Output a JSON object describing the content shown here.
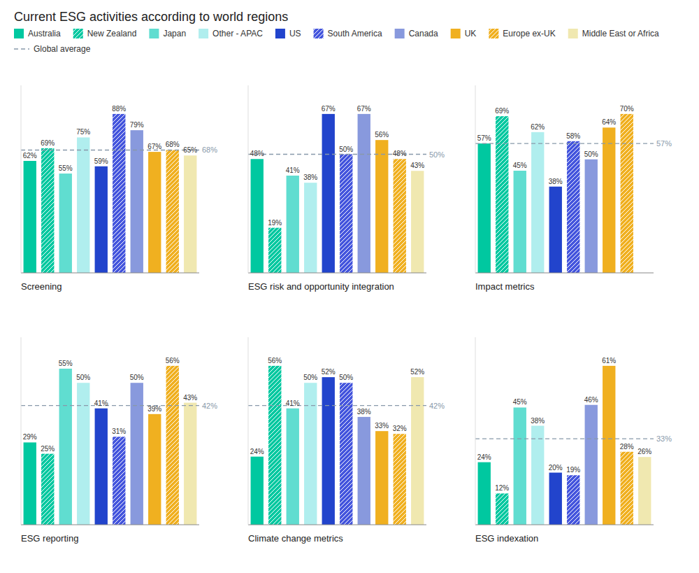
{
  "title": "Current ESG activities according to world regions",
  "chart_data": [
    {
      "type": "bar",
      "title": "Screening",
      "categories": [
        "Australia",
        "New Zealand",
        "Japan",
        "Other - APAC",
        "US",
        "South America",
        "Canada",
        "UK",
        "Europe ex-UK",
        "Middle East or Africa"
      ],
      "colors": [
        "#00c8a0",
        "#00c8a0",
        "#60ddd0",
        "#b0eeee",
        "#2244cc",
        "#4455dd",
        "#8899dd",
        "#f0b020",
        "#f0b020",
        "#f0e8b0"
      ],
      "values": [
        62,
        69,
        55,
        75,
        59,
        88,
        79,
        67,
        68,
        65
      ],
      "value_labels": [
        "62%",
        "69%",
        "55%",
        "75%",
        "59%",
        "88%",
        "79%",
        "67%",
        "68%",
        "65%"
      ],
      "data_labels": true,
      "global_average": {
        "name": "Global average",
        "value": 68,
        "label": "68%",
        "color": "#8899aa",
        "line_style": "dashed"
      },
      "ylim": [
        0,
        103.84
      ],
      "tick_labels": false,
      "grid": false,
      "legend": "top-left"
    },
    {
      "type": "bar",
      "title": "ESG risk and opportunity integration",
      "categories": [
        "Australia",
        "New Zealand",
        "Japan",
        "Other - APAC",
        "US",
        "South America",
        "Canada",
        "UK",
        "Europe ex-UK",
        "Middle East or Africa"
      ],
      "colors": [
        "#00c8a0",
        "#00c8a0",
        "#60ddd0",
        "#b0eeee",
        "#2244cc",
        "#4455dd",
        "#8899dd",
        "#f0b020",
        "#f0b020",
        "#f0e8b0"
      ],
      "values": [
        48,
        19,
        41,
        38,
        67,
        50,
        67,
        56,
        48,
        43
      ],
      "value_labels": [
        "48%",
        "19%",
        "41%",
        "38%",
        "67%",
        "50%",
        "67%",
        "56%",
        "48%",
        "43%"
      ],
      "data_labels": true,
      "global_average": {
        "name": "Global average",
        "value": 50,
        "label": "50%",
        "color": "#8899aa",
        "line_style": "dashed"
      },
      "ylim": [
        0,
        79.06
      ],
      "tick_labels": false,
      "grid": false
    },
    {
      "type": "bar",
      "title": "Impact metrics",
      "categories": [
        "Australia",
        "New Zealand",
        "Japan",
        "Other - APAC",
        "US",
        "South America",
        "Canada",
        "UK",
        "Europe ex-UK",
        "Middle East or Africa"
      ],
      "colors": [
        "#00c8a0",
        "#00c8a0",
        "#60ddd0",
        "#b0eeee",
        "#2244cc",
        "#4455dd",
        "#8899dd",
        "#f0b020",
        "#f0b020",
        "#f0e8b0"
      ],
      "values": [
        57,
        69,
        45,
        62,
        38,
        58,
        50,
        64,
        70,
        null
      ],
      "value_labels": [
        "57%",
        "69%",
        "45%",
        "62%",
        "38%",
        "58%",
        "50%",
        "64%",
        "70%",
        null
      ],
      "data_labels": true,
      "global_average": {
        "name": "Global average",
        "value": 57,
        "label": "57%",
        "color": "#8899aa",
        "line_style": "dashed"
      },
      "ylim": [
        0,
        82.6
      ],
      "tick_labels": false,
      "grid": false
    },
    {
      "type": "bar",
      "title": "ESG reporting",
      "categories": [
        "Australia",
        "New Zealand",
        "Japan",
        "Other - APAC",
        "US",
        "South America",
        "Canada",
        "UK",
        "Europe ex-UK",
        "Middle East or Africa"
      ],
      "colors": [
        "#00c8a0",
        "#00c8a0",
        "#60ddd0",
        "#b0eeee",
        "#2244cc",
        "#4455dd",
        "#8899dd",
        "#f0b020",
        "#f0b020",
        "#f0e8b0"
      ],
      "values": [
        29,
        25,
        55,
        50,
        41,
        31,
        50,
        39,
        56,
        43
      ],
      "value_labels": [
        "29%",
        "25%",
        "55%",
        "50%",
        "41%",
        "31%",
        "50%",
        "39%",
        "56%",
        "43%"
      ],
      "data_labels": true,
      "global_average": {
        "name": "Global average",
        "value": 42,
        "label": "42%",
        "color": "#8899aa",
        "line_style": "dashed"
      },
      "ylim": [
        0,
        66.08
      ],
      "tick_labels": false,
      "grid": false
    },
    {
      "type": "bar",
      "title": "Climate change metrics",
      "categories": [
        "Australia",
        "New Zealand",
        "Japan",
        "Other - APAC",
        "US",
        "South America",
        "Canada",
        "UK",
        "Europe ex-UK",
        "Middle East or Africa"
      ],
      "colors": [
        "#00c8a0",
        "#00c8a0",
        "#60ddd0",
        "#b0eeee",
        "#2244cc",
        "#4455dd",
        "#8899dd",
        "#f0b020",
        "#f0b020",
        "#f0e8b0"
      ],
      "values": [
        24,
        56,
        41,
        50,
        52,
        50,
        38,
        33,
        32,
        52
      ],
      "value_labels": [
        "24%",
        "56%",
        "41%",
        "50%",
        "52%",
        "50%",
        "38%",
        "33%",
        "32%",
        "52%"
      ],
      "data_labels": true,
      "global_average": {
        "name": "Global average",
        "value": 42,
        "label": "42%",
        "color": "#8899aa",
        "line_style": "dashed"
      },
      "ylim": [
        0,
        66.08
      ],
      "tick_labels": false,
      "grid": false
    },
    {
      "type": "bar",
      "title": "ESG indexation",
      "categories": [
        "Australia",
        "New Zealand",
        "Japan",
        "Other - APAC",
        "US",
        "South America",
        "Canada",
        "UK",
        "Europe ex-UK",
        "Middle East or Africa"
      ],
      "colors": [
        "#00c8a0",
        "#00c8a0",
        "#60ddd0",
        "#b0eeee",
        "#2244cc",
        "#4455dd",
        "#8899dd",
        "#f0b020",
        "#f0b020",
        "#f0e8b0"
      ],
      "values": [
        24,
        12,
        45,
        38,
        20,
        19,
        46,
        61,
        28,
        26
      ],
      "value_labels": [
        "24%",
        "12%",
        "45%",
        "38%",
        "20%",
        "19%",
        "46%",
        "61%",
        "28%",
        "26%"
      ],
      "data_labels": true,
      "global_average": {
        "name": "Global average",
        "value": 33,
        "label": "33%",
        "color": "#8899aa",
        "line_style": "dashed"
      },
      "ylim": [
        0,
        71.98
      ],
      "tick_labels": false,
      "grid": false
    }
  ]
}
